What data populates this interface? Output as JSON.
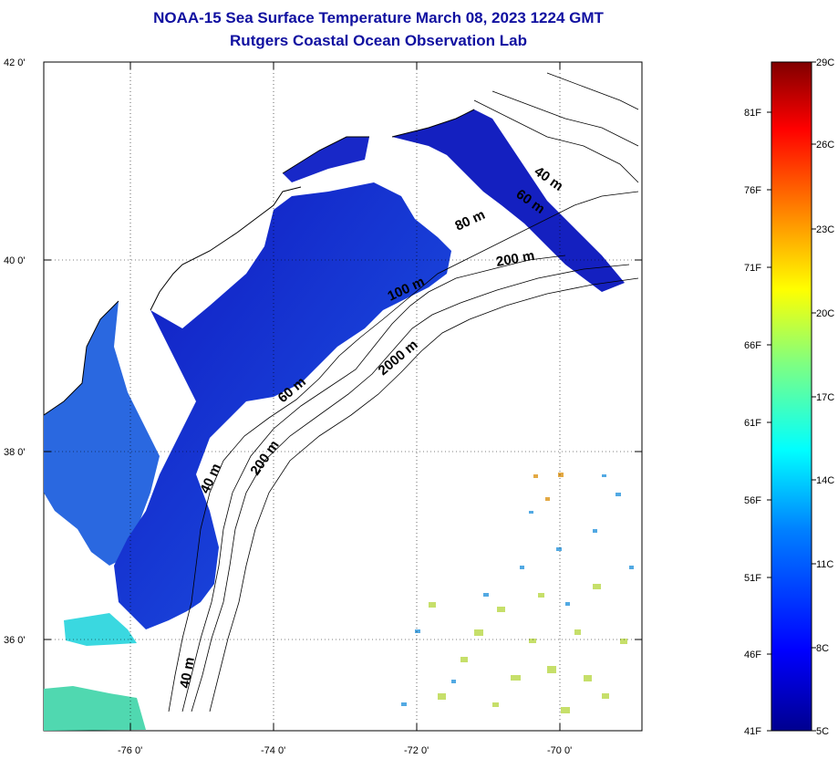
{
  "header": {
    "title_line1": "NOAA-15 Sea Surface Temperature March 08, 2023 1224 GMT",
    "title_line2": "Rutgers Coastal Ocean Observation Lab"
  },
  "map": {
    "lat_ticks": [
      "42 0'",
      "40 0'",
      "38 0'",
      "36 0'"
    ],
    "lon_ticks": [
      "-76 0'",
      "-74 0'",
      "-72 0'",
      "-70 0'"
    ],
    "depth_contour_labels": [
      "40 m",
      "60 m",
      "80 m",
      "200 m",
      "100 m",
      "2000 m",
      "60 m",
      "200 m",
      "40 m",
      "40 m"
    ],
    "colors": {
      "land": "#ffffff",
      "cold_water": "#1020c8",
      "bay_water": "#2060e0",
      "warm_patch": "#c8e060"
    }
  },
  "colorbar": {
    "celsius_labels": [
      "29C",
      "26C",
      "23C",
      "20C",
      "17C",
      "14C",
      "11C",
      "8C",
      "5C"
    ],
    "fahrenheit_labels": [
      "81F",
      "76F",
      "71F",
      "66F",
      "61F",
      "56F",
      "51F",
      "46F",
      "41F"
    ],
    "colormap": [
      "#00008f",
      "#0000ff",
      "#0080ff",
      "#00ffff",
      "#80ff80",
      "#ffff00",
      "#ff8000",
      "#ff0000",
      "#800000"
    ]
  }
}
